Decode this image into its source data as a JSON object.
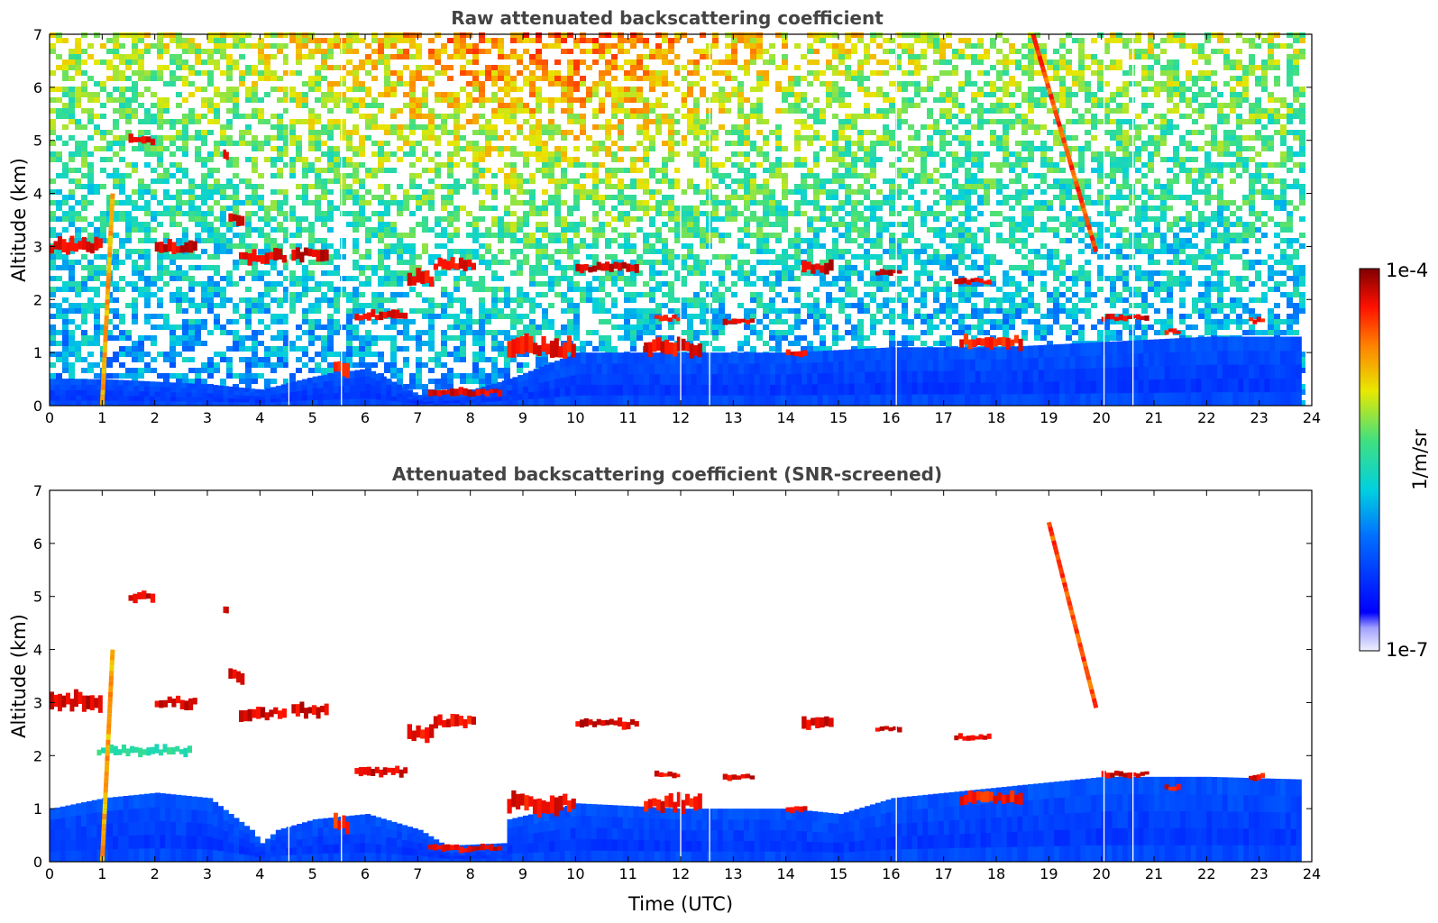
{
  "chart_data": [
    {
      "type": "heatmap",
      "title": "Raw attenuated backscattering coefficient",
      "xlabel": "",
      "ylabel": "Altitude (km)",
      "xlim": [
        0,
        24
      ],
      "ylim": [
        0,
        7
      ],
      "xticks": [
        0,
        1,
        2,
        3,
        4,
        5,
        6,
        7,
        8,
        9,
        10,
        11,
        12,
        13,
        14,
        15,
        16,
        17,
        18,
        19,
        20,
        21,
        22,
        23,
        24
      ],
      "yticks": [
        0,
        1,
        2,
        3,
        4,
        5,
        6,
        7
      ],
      "data_end_time": 23.8,
      "noise": true,
      "gaps": [
        4.55,
        5.55,
        12.0,
        12.55,
        16.1,
        20.05,
        20.6
      ],
      "boundary_layer": [
        [
          0,
          0.5
        ],
        [
          1,
          0.5
        ],
        [
          2,
          0.45
        ],
        [
          3,
          0.4
        ],
        [
          4,
          0.3
        ],
        [
          5,
          0.55
        ],
        [
          6,
          0.7
        ],
        [
          7,
          0.2
        ],
        [
          8,
          0.3
        ],
        [
          8.7,
          0.5
        ],
        [
          10,
          1.0
        ],
        [
          12,
          1.0
        ],
        [
          14,
          1.0
        ],
        [
          16,
          1.1
        ],
        [
          18,
          1.1
        ],
        [
          20,
          1.2
        ],
        [
          22,
          1.3
        ],
        [
          23.8,
          1.3
        ]
      ],
      "layers": [
        {
          "t0": 0.0,
          "t1": 1.0,
          "alt": 3.0,
          "thick": 0.25,
          "level": 0.97
        },
        {
          "t0": 1.5,
          "t1": 2.0,
          "alt": 5.0,
          "thick": 0.15,
          "level": 0.97
        },
        {
          "t0": 2.0,
          "t1": 2.8,
          "alt": 3.0,
          "thick": 0.2,
          "level": 0.97
        },
        {
          "t0": 3.3,
          "t1": 3.4,
          "alt": 4.75,
          "thick": 0.15,
          "level": 0.97
        },
        {
          "t0": 3.4,
          "t1": 3.7,
          "alt": 3.5,
          "thick": 0.2,
          "level": 0.97
        },
        {
          "t0": 3.6,
          "t1": 4.5,
          "alt": 2.8,
          "thick": 0.2,
          "level": 0.97
        },
        {
          "t0": 4.6,
          "t1": 5.3,
          "alt": 2.85,
          "thick": 0.2,
          "level": 0.97
        },
        {
          "t0": 5.4,
          "t1": 5.7,
          "alt": 0.7,
          "thick": 0.25,
          "level": 0.92
        },
        {
          "t0": 5.8,
          "t1": 6.8,
          "alt": 1.7,
          "thick": 0.15,
          "level": 0.97
        },
        {
          "t0": 6.8,
          "t1": 7.3,
          "alt": 2.4,
          "thick": 0.25,
          "level": 0.95
        },
        {
          "t0": 7.3,
          "t1": 8.1,
          "alt": 2.65,
          "thick": 0.2,
          "level": 0.95
        },
        {
          "t0": 7.2,
          "t1": 8.6,
          "alt": 0.25,
          "thick": 0.12,
          "level": 0.97
        },
        {
          "t0": 8.7,
          "t1": 10.0,
          "alt": 1.1,
          "thick": 0.3,
          "level": 0.95
        },
        {
          "t0": 10.0,
          "t1": 11.2,
          "alt": 2.6,
          "thick": 0.15,
          "level": 0.97
        },
        {
          "t0": 11.3,
          "t1": 12.4,
          "alt": 1.1,
          "thick": 0.25,
          "level": 0.95
        },
        {
          "t0": 11.5,
          "t1": 12.0,
          "alt": 1.65,
          "thick": 0.1,
          "level": 0.95
        },
        {
          "t0": 12.8,
          "t1": 13.4,
          "alt": 1.6,
          "thick": 0.1,
          "level": 0.97
        },
        {
          "t0": 14.0,
          "t1": 14.4,
          "alt": 1.0,
          "thick": 0.1,
          "level": 0.95
        },
        {
          "t0": 14.3,
          "t1": 14.9,
          "alt": 2.6,
          "thick": 0.2,
          "level": 0.97
        },
        {
          "t0": 15.7,
          "t1": 16.2,
          "alt": 2.5,
          "thick": 0.1,
          "level": 0.97
        },
        {
          "t0": 17.2,
          "t1": 17.9,
          "alt": 2.35,
          "thick": 0.1,
          "level": 0.97
        },
        {
          "t0": 17.3,
          "t1": 18.5,
          "alt": 1.2,
          "thick": 0.2,
          "level": 0.93
        },
        {
          "t0": 20.0,
          "t1": 20.9,
          "alt": 1.65,
          "thick": 0.1,
          "level": 0.97
        },
        {
          "t0": 21.2,
          "t1": 21.5,
          "alt": 1.4,
          "thick": 0.1,
          "level": 0.95
        },
        {
          "t0": 22.8,
          "t1": 23.1,
          "alt": 1.6,
          "thick": 0.1,
          "level": 0.95
        }
      ],
      "streaks": [
        {
          "t0": 1.0,
          "a0": 0.0,
          "t1": 1.2,
          "a1": 4.0,
          "level": 0.75
        },
        {
          "t0": 18.7,
          "a0": 7.0,
          "t1": 19.9,
          "a1": 2.9,
          "level": 0.85
        }
      ]
    },
    {
      "type": "heatmap",
      "title": "Attenuated backscattering coefficient (SNR-screened)",
      "xlabel": "Time (UTC)",
      "ylabel": "Altitude (km)",
      "xlim": [
        0,
        24
      ],
      "ylim": [
        0,
        7
      ],
      "xticks": [
        0,
        1,
        2,
        3,
        4,
        5,
        6,
        7,
        8,
        9,
        10,
        11,
        12,
        13,
        14,
        15,
        16,
        17,
        18,
        19,
        20,
        21,
        22,
        23,
        24
      ],
      "yticks": [
        0,
        1,
        2,
        3,
        4,
        5,
        6,
        7
      ],
      "data_end_time": 23.8,
      "noise": false,
      "gaps": [
        4.55,
        5.55,
        12.0,
        12.55,
        16.1,
        20.05,
        20.6
      ],
      "boundary_layer": [
        [
          0,
          1.0
        ],
        [
          1,
          1.2
        ],
        [
          2,
          1.3
        ],
        [
          3,
          1.2
        ],
        [
          3.8,
          0.6
        ],
        [
          4,
          0.35
        ],
        [
          4.3,
          0.6
        ],
        [
          5,
          0.8
        ],
        [
          6,
          0.9
        ],
        [
          7,
          0.6
        ],
        [
          7.5,
          0.3
        ],
        [
          8.6,
          0.35
        ],
        [
          8.7,
          0.8
        ],
        [
          10,
          1.1
        ],
        [
          12,
          1.0
        ],
        [
          14,
          1.0
        ],
        [
          15,
          0.9
        ],
        [
          16,
          1.2
        ],
        [
          18,
          1.4
        ],
        [
          20,
          1.6
        ],
        [
          22,
          1.6
        ],
        [
          23.8,
          1.55
        ]
      ],
      "layers": [
        {
          "t0": 0.0,
          "t1": 1.0,
          "alt": 3.0,
          "thick": 0.3,
          "level": 0.97
        },
        {
          "t0": 0.9,
          "t1": 2.7,
          "alt": 2.1,
          "thick": 0.15,
          "level": 0.55
        },
        {
          "t0": 1.5,
          "t1": 2.0,
          "alt": 5.0,
          "thick": 0.15,
          "level": 0.97
        },
        {
          "t0": 2.0,
          "t1": 2.8,
          "alt": 3.0,
          "thick": 0.2,
          "level": 0.97
        },
        {
          "t0": 3.3,
          "t1": 3.4,
          "alt": 4.75,
          "thick": 0.15,
          "level": 0.97
        },
        {
          "t0": 3.4,
          "t1": 3.7,
          "alt": 3.5,
          "thick": 0.2,
          "level": 0.97
        },
        {
          "t0": 3.6,
          "t1": 4.5,
          "alt": 2.8,
          "thick": 0.2,
          "level": 0.97
        },
        {
          "t0": 4.6,
          "t1": 5.3,
          "alt": 2.85,
          "thick": 0.2,
          "level": 0.97
        },
        {
          "t0": 5.4,
          "t1": 5.7,
          "alt": 0.7,
          "thick": 0.25,
          "level": 0.92
        },
        {
          "t0": 5.8,
          "t1": 6.8,
          "alt": 1.7,
          "thick": 0.15,
          "level": 0.97
        },
        {
          "t0": 6.8,
          "t1": 7.3,
          "alt": 2.4,
          "thick": 0.25,
          "level": 0.95
        },
        {
          "t0": 7.3,
          "t1": 8.1,
          "alt": 2.65,
          "thick": 0.2,
          "level": 0.95
        },
        {
          "t0": 7.2,
          "t1": 8.6,
          "alt": 0.25,
          "thick": 0.12,
          "level": 0.97
        },
        {
          "t0": 8.7,
          "t1": 10.0,
          "alt": 1.1,
          "thick": 0.3,
          "level": 0.95
        },
        {
          "t0": 10.0,
          "t1": 11.2,
          "alt": 2.6,
          "thick": 0.15,
          "level": 0.97
        },
        {
          "t0": 11.3,
          "t1": 12.4,
          "alt": 1.1,
          "thick": 0.25,
          "level": 0.95
        },
        {
          "t0": 11.5,
          "t1": 12.0,
          "alt": 1.65,
          "thick": 0.1,
          "level": 0.95
        },
        {
          "t0": 12.8,
          "t1": 13.4,
          "alt": 1.6,
          "thick": 0.1,
          "level": 0.97
        },
        {
          "t0": 14.0,
          "t1": 14.4,
          "alt": 1.0,
          "thick": 0.1,
          "level": 0.95
        },
        {
          "t0": 14.3,
          "t1": 14.9,
          "alt": 2.6,
          "thick": 0.2,
          "level": 0.97
        },
        {
          "t0": 15.7,
          "t1": 16.2,
          "alt": 2.5,
          "thick": 0.1,
          "level": 0.97
        },
        {
          "t0": 17.2,
          "t1": 17.9,
          "alt": 2.35,
          "thick": 0.1,
          "level": 0.97
        },
        {
          "t0": 17.3,
          "t1": 18.5,
          "alt": 1.2,
          "thick": 0.2,
          "level": 0.93
        },
        {
          "t0": 20.0,
          "t1": 20.9,
          "alt": 1.65,
          "thick": 0.1,
          "level": 0.97
        },
        {
          "t0": 21.2,
          "t1": 21.5,
          "alt": 1.4,
          "thick": 0.1,
          "level": 0.95
        },
        {
          "t0": 22.8,
          "t1": 23.1,
          "alt": 1.6,
          "thick": 0.1,
          "level": 0.95
        }
      ],
      "streaks": [
        {
          "t0": 1.0,
          "a0": 0.0,
          "t1": 1.2,
          "a1": 4.0,
          "level": 0.75
        },
        {
          "t0": 19.0,
          "a0": 6.4,
          "t1": 19.9,
          "a1": 2.9,
          "level": 0.85
        }
      ]
    }
  ],
  "colorbar": {
    "label": "1/m/sr",
    "max_label": "1e-4",
    "min_label": "1e-7",
    "scale": "log",
    "colormap": "jet",
    "range": [
      1e-07,
      0.0001
    ]
  }
}
